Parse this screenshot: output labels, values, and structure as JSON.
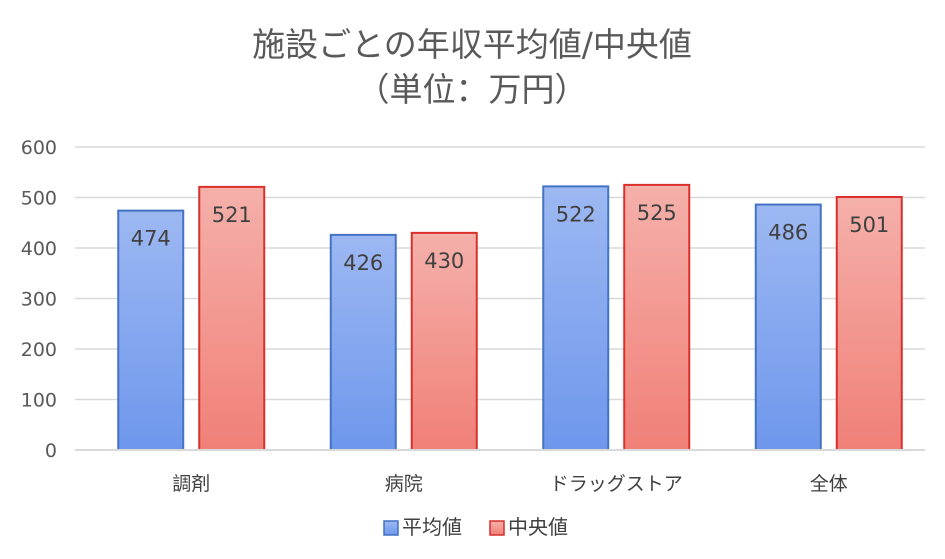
{
  "chart_data": {
    "type": "bar",
    "title": "施設ごとの年収平均値/中央値",
    "subtitle": "（単位：万円）",
    "categories": [
      "調剤",
      "病院",
      "ドラッグストア",
      "全体"
    ],
    "series": [
      {
        "name": "平均値",
        "values": [
          474,
          426,
          522,
          486
        ],
        "color": "#4472C4",
        "fill_top": "#9DB8F2",
        "fill_bottom": "#6E97EC"
      },
      {
        "name": "中央値",
        "values": [
          521,
          430,
          525,
          501
        ],
        "color": "#D9302C",
        "fill_top": "#F5B0AA",
        "fill_bottom": "#F08078"
      }
    ],
    "ylim": [
      0,
      600
    ],
    "yticks": [
      0,
      100,
      200,
      300,
      400,
      500,
      600
    ],
    "grid": true,
    "legend": "bottom",
    "colors": {
      "grid": "#D9D9D9",
      "text": "#595959"
    }
  }
}
